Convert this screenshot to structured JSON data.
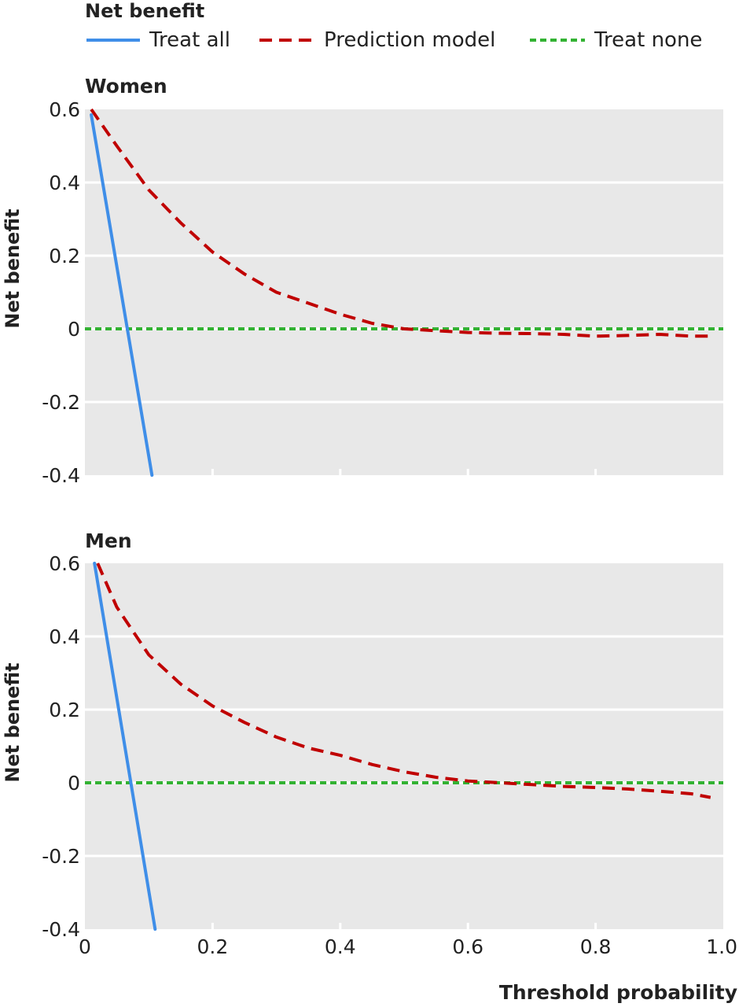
{
  "legend": {
    "title": "Net benefit",
    "items": [
      {
        "label": "Treat all",
        "color": "#3f8ee8",
        "dash": "solid"
      },
      {
        "label": "Prediction model",
        "color": "#c00000",
        "dash": "dashed"
      },
      {
        "label": "Treat none",
        "color": "#33b233",
        "dash": "dashed-short"
      }
    ]
  },
  "chart_data": [
    {
      "type": "line",
      "title": "Women",
      "xlabel": "",
      "ylabel": "Net benefit",
      "xlim": [
        0,
        1.0
      ],
      "ylim": [
        -0.4,
        0.6
      ],
      "x_ticks": [
        "0",
        "0.2",
        "0.4",
        "0.6",
        "0.8",
        "1.0"
      ],
      "y_ticks": [
        "-0.4",
        "-0.2",
        "0",
        "0.2",
        "0.4",
        "0.6"
      ],
      "show_x_tick_labels": false,
      "grid": "horizontal",
      "series": [
        {
          "name": "Treat all",
          "x": [
            0.01,
            0.105
          ],
          "y": [
            0.585,
            -0.4
          ]
        },
        {
          "name": "Prediction model",
          "x": [
            0.01,
            0.05,
            0.1,
            0.15,
            0.2,
            0.25,
            0.3,
            0.35,
            0.4,
            0.45,
            0.5,
            0.55,
            0.6,
            0.65,
            0.7,
            0.75,
            0.8,
            0.85,
            0.9,
            0.95,
            0.98
          ],
          "y": [
            0.6,
            0.5,
            0.38,
            0.29,
            0.21,
            0.15,
            0.1,
            0.07,
            0.04,
            0.015,
            0.0,
            -0.005,
            -0.01,
            -0.012,
            -0.013,
            -0.015,
            -0.02,
            -0.018,
            -0.015,
            -0.02,
            -0.02
          ]
        },
        {
          "name": "Treat none",
          "x": [
            0,
            1.0
          ],
          "y": [
            0,
            0
          ]
        }
      ]
    },
    {
      "type": "line",
      "title": "Men",
      "xlabel": "Threshold probability",
      "ylabel": "Net benefit",
      "xlim": [
        0,
        1.0
      ],
      "ylim": [
        -0.4,
        0.6
      ],
      "x_ticks": [
        "0",
        "0.2",
        "0.4",
        "0.6",
        "0.8",
        "1.0"
      ],
      "y_ticks": [
        "-0.4",
        "-0.2",
        "0",
        "0.2",
        "0.4",
        "0.6"
      ],
      "show_x_tick_labels": true,
      "grid": "horizontal",
      "series": [
        {
          "name": "Treat all",
          "x": [
            0.015,
            0.11
          ],
          "y": [
            0.6,
            -0.4
          ]
        },
        {
          "name": "Prediction model",
          "x": [
            0.02,
            0.05,
            0.1,
            0.15,
            0.2,
            0.25,
            0.3,
            0.35,
            0.4,
            0.45,
            0.5,
            0.55,
            0.6,
            0.65,
            0.7,
            0.75,
            0.8,
            0.85,
            0.9,
            0.95,
            0.98
          ],
          "y": [
            0.6,
            0.48,
            0.35,
            0.27,
            0.21,
            0.165,
            0.125,
            0.095,
            0.075,
            0.05,
            0.03,
            0.015,
            0.005,
            0.0,
            -0.005,
            -0.01,
            -0.013,
            -0.017,
            -0.023,
            -0.03,
            -0.04
          ]
        },
        {
          "name": "Treat none",
          "x": [
            0,
            1.0
          ],
          "y": [
            0,
            0
          ]
        }
      ]
    }
  ]
}
